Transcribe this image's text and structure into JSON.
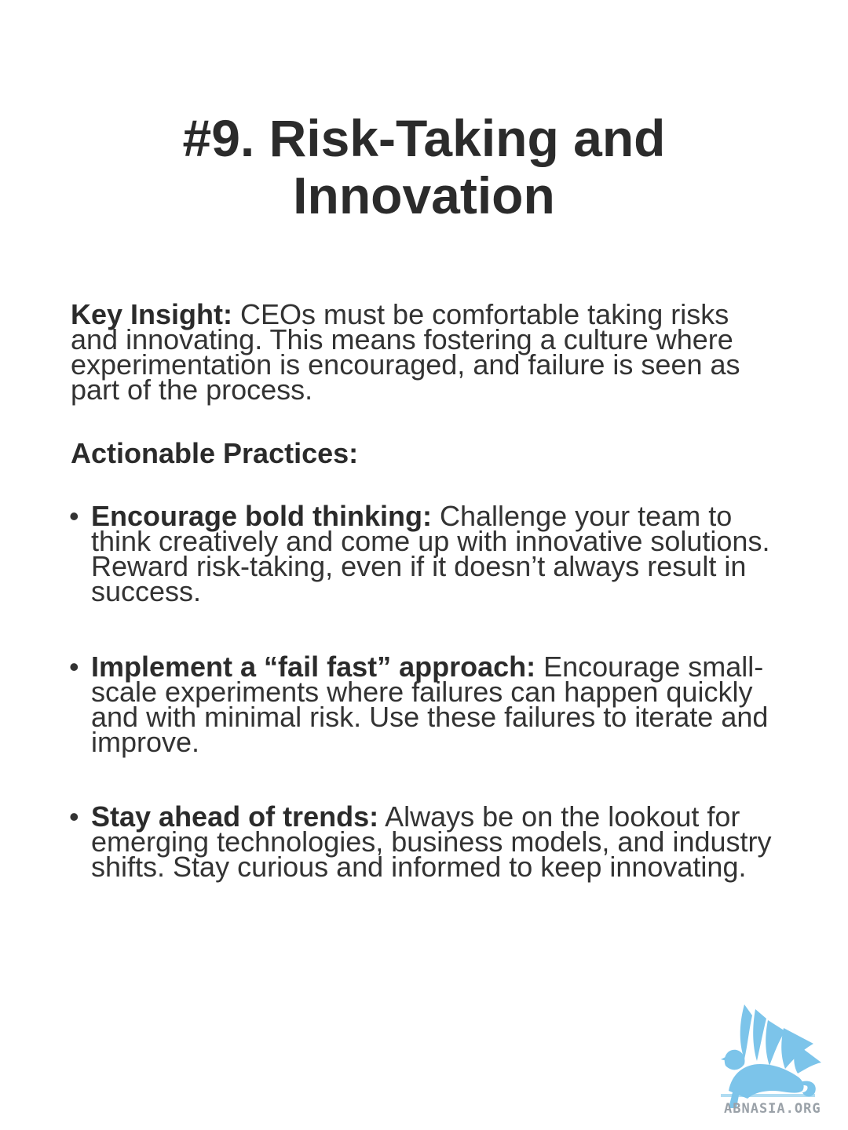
{
  "title": {
    "line1": "#9. Risk-Taking and",
    "line2": "Innovation"
  },
  "key_insight": {
    "label": "Key Insight:",
    "text": " CEOs must be comfortable taking risks and innovating. This means fostering a culture where experimentation is encouraged, and failure is seen as part of the process."
  },
  "practices_heading": "Actionable Practices:",
  "practices": [
    {
      "bullet": "•",
      "label": "Encourage bold thinking:",
      "text": " Challenge your team to think creatively and come up with innovative solutions. Reward risk-taking, even if it doesn’t always result in success."
    },
    {
      "bullet": "•",
      "label": "Implement a “fail fast” approach:",
      "text": " Encourage small-scale experiments where failures can happen quickly and with minimal risk. Use these failures to iterate and improve."
    },
    {
      "bullet": "•",
      "label": "Stay ahead of trends:",
      "text": " Always be on the lookout for emerging technologies, business models, and industry shifts. Stay curious and informed to keep innovating."
    }
  ],
  "logo": {
    "icon": "griffin-logo-icon",
    "text": "ABNASIA.ORG",
    "color": "#7cc4ea"
  }
}
